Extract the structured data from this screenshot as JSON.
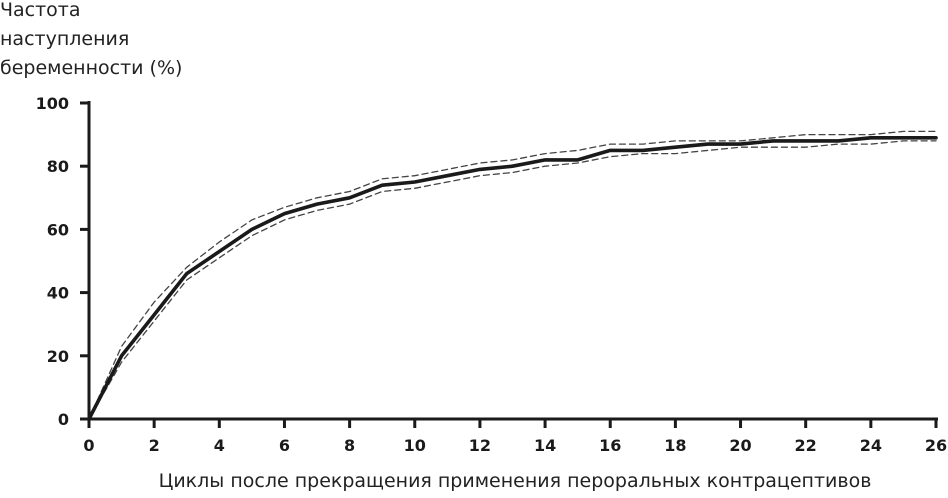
{
  "chart_data": {
    "type": "line",
    "ylabel_lines": [
      "Частота",
      "наступления",
      "беременности (%)"
    ],
    "xlabel": "Циклы после прекращения применения пероральных контрацептивов",
    "xlim": [
      0,
      26
    ],
    "ylim": [
      0,
      100
    ],
    "xticks": [
      "0",
      "2",
      "4",
      "6",
      "8",
      "10",
      "12",
      "14",
      "16",
      "18",
      "20",
      "22",
      "24",
      "26"
    ],
    "yticks": [
      "0",
      "20",
      "40",
      "60",
      "80",
      "100"
    ],
    "grid": false,
    "series": [
      {
        "role": "main",
        "style": "solid",
        "color": "#1a1a1a",
        "x": [
          0,
          1,
          2,
          3,
          4,
          5,
          6,
          7,
          8,
          9,
          10,
          11,
          12,
          13,
          14,
          15,
          16,
          17,
          18,
          19,
          20,
          21,
          22,
          23,
          24,
          25,
          26
        ],
        "y": [
          0,
          20,
          33,
          46,
          53,
          60,
          65,
          68,
          70,
          74,
          75,
          77,
          79,
          80,
          82,
          82,
          85,
          85,
          86,
          87,
          87,
          88,
          88,
          88,
          89,
          89,
          89
        ]
      },
      {
        "role": "upper-bound",
        "style": "dashed",
        "color": "#444444",
        "x": [
          0,
          1,
          2,
          3,
          4,
          5,
          6,
          7,
          8,
          9,
          10,
          11,
          12,
          13,
          14,
          15,
          16,
          17,
          18,
          19,
          20,
          21,
          22,
          23,
          24,
          25,
          26
        ],
        "y": [
          0,
          23,
          37,
          48,
          56,
          63,
          67,
          70,
          72,
          76,
          77,
          79,
          81,
          82,
          84,
          85,
          87,
          87,
          88,
          88,
          88,
          89,
          90,
          90,
          90,
          91,
          91
        ]
      },
      {
        "role": "lower-bound",
        "style": "dashed",
        "color": "#444444",
        "x": [
          0,
          1,
          2,
          3,
          4,
          5,
          6,
          7,
          8,
          9,
          10,
          11,
          12,
          13,
          14,
          15,
          16,
          17,
          18,
          19,
          20,
          21,
          22,
          23,
          24,
          25,
          26
        ],
        "y": [
          0,
          18,
          31,
          44,
          51,
          58,
          63,
          66,
          68,
          72,
          73,
          75,
          77,
          78,
          80,
          81,
          83,
          84,
          84,
          85,
          86,
          86,
          86,
          87,
          87,
          88,
          88
        ]
      }
    ]
  }
}
